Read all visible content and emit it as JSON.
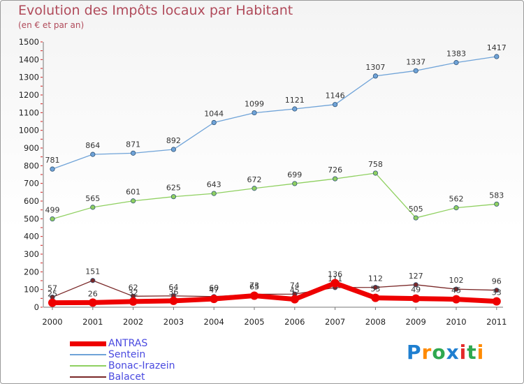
{
  "chart_data": {
    "type": "line",
    "title": "Evolution des Impôts locaux par Habitant",
    "subtitle": "(en € et par an)",
    "categories": [
      "2000",
      "2001",
      "2002",
      "2003",
      "2004",
      "2005",
      "2006",
      "2007",
      "2008",
      "2009",
      "2010",
      "2011"
    ],
    "ylim": [
      0,
      1500
    ],
    "yticks": [
      0,
      100,
      200,
      300,
      400,
      500,
      600,
      700,
      800,
      900,
      1000,
      1100,
      1200,
      1300,
      1400,
      1500
    ],
    "grid": false,
    "legend_position": "bottom-left",
    "series": [
      {
        "name": "ANTRAS",
        "color": "#ee0000",
        "values": [
          25,
          26,
          32,
          36,
          47,
          65,
          45,
          136,
          53,
          49,
          45,
          33
        ]
      },
      {
        "name": "Sentein",
        "color": "#6fa3d8",
        "values": [
          781,
          864,
          871,
          892,
          1044,
          1099,
          1121,
          1146,
          1307,
          1337,
          1383,
          1417
        ]
      },
      {
        "name": "Bonac-Irazein",
        "color": "#8fd060",
        "values": [
          499,
          565,
          601,
          625,
          643,
          672,
          699,
          726,
          758,
          505,
          562,
          583
        ]
      },
      {
        "name": "Balacet",
        "color": "#7a2828",
        "values": [
          57,
          151,
          62,
          64,
          60,
          73,
          74,
          111,
          112,
          127,
          102,
          96
        ]
      }
    ]
  },
  "logo": {
    "letters": [
      "P",
      "r",
      "o",
      "x",
      "i",
      "t",
      "i"
    ],
    "colors": [
      "#1f7fd0",
      "#ff8a00",
      "#2fa84f",
      "#1f7fd0",
      "#e52a2a",
      "#2fa84f",
      "#ff8a00"
    ]
  }
}
